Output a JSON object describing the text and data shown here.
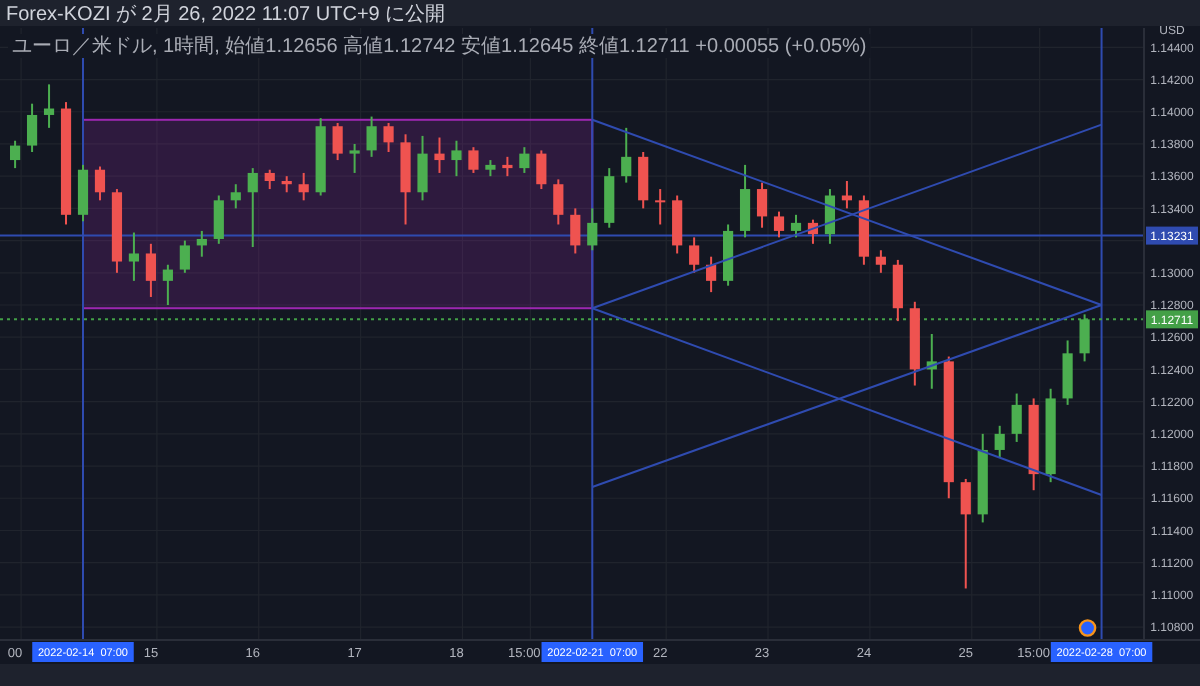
{
  "chart_data": {
    "type": "candlestick",
    "title": "Forex-KOZI が 2月 26, 2022 11:07 UTC+9 に公開",
    "subtitle": "ユーロ／米ドル, 1時間, 始値1.12656 高値1.12742 安値1.12645 終値1.12711 +0.00055 (+0.05%)",
    "ylabel": "USD",
    "categories": [
      "00",
      null,
      null,
      null,
      "2022-02-14  07:00",
      null,
      null,
      null,
      "15",
      null,
      null,
      null,
      null,
      null,
      "16",
      null,
      null,
      null,
      null,
      null,
      "17",
      null,
      null,
      null,
      null,
      null,
      "18",
      null,
      null,
      null,
      "15:00",
      null,
      null,
      null,
      "2022-02-21  07:00",
      null,
      null,
      null,
      "22",
      null,
      null,
      null,
      null,
      null,
      "23",
      null,
      null,
      null,
      null,
      null,
      "24",
      null,
      null,
      null,
      null,
      null,
      "25",
      null,
      null,
      null,
      "15:00",
      null,
      null,
      null,
      "2022-02-28  07:00"
    ],
    "ylim": [
      1.1072,
      1.1452
    ],
    "yticks": [
      {
        "value": 1.108,
        "label": "1.10800"
      },
      {
        "value": 1.11,
        "label": "1.11000"
      },
      {
        "value": 1.112,
        "label": "1.11200"
      },
      {
        "value": 1.114,
        "label": "1.11400"
      },
      {
        "value": 1.116,
        "label": "1.11600"
      },
      {
        "value": 1.118,
        "label": "1.11800"
      },
      {
        "value": 1.12,
        "label": "1.12000"
      },
      {
        "value": 1.122,
        "label": "1.12200"
      },
      {
        "value": 1.124,
        "label": "1.12400"
      },
      {
        "value": 1.126,
        "label": "1.12600"
      },
      {
        "value": 1.128,
        "label": "1.12800"
      },
      {
        "value": 1.13,
        "label": "1.13000"
      },
      {
        "value": 1.132,
        "label": null
      },
      {
        "value": 1.134,
        "label": "1.13400"
      },
      {
        "value": 1.136,
        "label": "1.13600"
      },
      {
        "value": 1.138,
        "label": "1.13800"
      },
      {
        "value": 1.14,
        "label": "1.14000"
      },
      {
        "value": 1.142,
        "label": "1.14200"
      },
      {
        "value": 1.144,
        "label": "1.14400"
      }
    ],
    "grid": true,
    "ref_lines": [
      {
        "axis": "x",
        "value": "2022-02-14  07:00",
        "color": "#2f4bb0"
      },
      {
        "axis": "x",
        "value": "2022-02-21  07:00",
        "color": "#2f4bb0"
      },
      {
        "axis": "x",
        "value": "2022-02-28  07:00",
        "color": "#2f4bb0"
      },
      {
        "axis": "y",
        "value": 1.13231,
        "label": "1.13231",
        "color": "#2f4bb0"
      },
      {
        "axis": "y",
        "value": 1.12711,
        "label": "1.12711",
        "color": "#43a047",
        "line_style": "dotted"
      }
    ],
    "bands": [
      {
        "axis": "y",
        "from": 1.1278,
        "to": 1.1395,
        "color": "#9c27b0"
      }
    ],
    "series": [
      {
        "ohlc": [
          [
            1.137,
            1.1382,
            1.1365,
            1.1379
          ],
          [
            1.1379,
            1.1405,
            1.1375,
            1.1398
          ],
          [
            1.1398,
            1.1417,
            1.139,
            1.1402
          ],
          [
            1.1402,
            1.1406,
            1.133,
            1.1336
          ],
          [
            1.1336,
            1.1367,
            1.1332,
            1.1364
          ],
          [
            1.1364,
            1.1366,
            1.1345,
            1.135
          ],
          [
            1.135,
            1.1352,
            1.13,
            1.1307
          ],
          [
            1.1307,
            1.1325,
            1.1295,
            1.1312
          ],
          [
            1.1312,
            1.1318,
            1.1285,
            1.1295
          ],
          [
            1.1295,
            1.1305,
            1.128,
            1.1302
          ],
          [
            1.1302,
            1.132,
            1.13,
            1.1317
          ],
          [
            1.1317,
            1.1326,
            1.131,
            1.1321
          ],
          [
            1.1321,
            1.1348,
            1.1318,
            1.1345
          ],
          [
            1.1345,
            1.1355,
            1.134,
            1.135
          ],
          [
            1.135,
            1.1365,
            1.1316,
            1.1362
          ],
          [
            1.1362,
            1.1364,
            1.1352,
            1.1357
          ],
          [
            1.1357,
            1.136,
            1.135,
            1.1355
          ],
          [
            1.1355,
            1.1362,
            1.1345,
            1.135
          ],
          [
            1.135,
            1.1396,
            1.1348,
            1.1391
          ],
          [
            1.1391,
            1.1393,
            1.137,
            1.1374
          ],
          [
            1.1374,
            1.138,
            1.1362,
            1.1376
          ],
          [
            1.1376,
            1.1397,
            1.1372,
            1.1391
          ],
          [
            1.1391,
            1.1393,
            1.1375,
            1.1381
          ],
          [
            1.1381,
            1.1386,
            1.133,
            1.135
          ],
          [
            1.135,
            1.1385,
            1.1345,
            1.1374
          ],
          [
            1.1374,
            1.1384,
            1.1362,
            1.137
          ],
          [
            1.137,
            1.1382,
            1.136,
            1.1376
          ],
          [
            1.1376,
            1.1378,
            1.1362,
            1.1364
          ],
          [
            1.1364,
            1.137,
            1.136,
            1.1367
          ],
          [
            1.1367,
            1.1372,
            1.136,
            1.1365
          ],
          [
            1.1365,
            1.1378,
            1.1362,
            1.1374
          ],
          [
            1.1374,
            1.1376,
            1.1352,
            1.1355
          ],
          [
            1.1355,
            1.1358,
            1.133,
            1.1336
          ],
          [
            1.1336,
            1.134,
            1.1312,
            1.1317
          ],
          [
            1.1317,
            1.134,
            1.1314,
            1.1331
          ],
          [
            1.1331,
            1.1365,
            1.1328,
            1.136
          ],
          [
            1.136,
            1.139,
            1.1356,
            1.1372
          ],
          [
            1.1372,
            1.1375,
            1.134,
            1.1345
          ],
          [
            1.1345,
            1.1352,
            1.133,
            1.1345
          ],
          [
            1.1345,
            1.1348,
            1.1312,
            1.1317
          ],
          [
            1.1317,
            1.1322,
            1.13,
            1.1305
          ],
          [
            1.1305,
            1.131,
            1.1288,
            1.1295
          ],
          [
            1.1295,
            1.133,
            1.1292,
            1.1326
          ],
          [
            1.1326,
            1.1367,
            1.1322,
            1.1352
          ],
          [
            1.1352,
            1.1356,
            1.1328,
            1.1335
          ],
          [
            1.1335,
            1.1338,
            1.1322,
            1.1326
          ],
          [
            1.1326,
            1.1336,
            1.1322,
            1.1331
          ],
          [
            1.1331,
            1.1333,
            1.1318,
            1.1324
          ],
          [
            1.1324,
            1.1352,
            1.1318,
            1.1348
          ],
          [
            1.1348,
            1.1357,
            1.134,
            1.1345
          ],
          [
            1.1345,
            1.1348,
            1.1305,
            1.131
          ],
          [
            1.131,
            1.1314,
            1.13,
            1.1305
          ],
          [
            1.1305,
            1.1308,
            1.127,
            1.1278
          ],
          [
            1.1278,
            1.1282,
            1.123,
            1.124
          ],
          [
            1.124,
            1.1262,
            1.1228,
            1.1245
          ],
          [
            1.1245,
            1.1248,
            1.116,
            1.117
          ],
          [
            1.117,
            1.1172,
            1.1104,
            1.115
          ],
          [
            1.115,
            1.12,
            1.1145,
            1.119
          ],
          [
            1.119,
            1.1205,
            1.1185,
            1.12
          ],
          [
            1.12,
            1.1225,
            1.1195,
            1.1218
          ],
          [
            1.1218,
            1.1222,
            1.1165,
            1.1175
          ],
          [
            1.1175,
            1.1228,
            1.117,
            1.1222
          ],
          [
            1.1222,
            1.1258,
            1.1218,
            1.125
          ],
          [
            1.125,
            1.12742,
            1.1245,
            1.12711
          ],
          null
        ],
        "colors": [
          "#4caf50",
          "#4caf50",
          "#4caf50",
          "#ef5350",
          "#4caf50",
          "#ef5350",
          "#ef5350",
          "#4caf50",
          "#ef5350",
          "#4caf50",
          "#4caf50",
          "#4caf50",
          "#4caf50",
          "#4caf50",
          "#4caf50",
          "#ef5350",
          "#ef5350",
          "#ef5350",
          "#4caf50",
          "#ef5350",
          "#4caf50",
          "#4caf50",
          "#ef5350",
          "#ef5350",
          "#4caf50",
          "#ef5350",
          "#4caf50",
          "#ef5350",
          "#4caf50",
          "#ef5350",
          "#4caf50",
          "#ef5350",
          "#ef5350",
          "#ef5350",
          "#4caf50",
          "#4caf50",
          "#4caf50",
          "#ef5350",
          "#ef5350",
          "#ef5350",
          "#ef5350",
          "#ef5350",
          "#4caf50",
          "#4caf50",
          "#ef5350",
          "#ef5350",
          "#4caf50",
          "#ef5350",
          "#4caf50",
          "#ef5350",
          "#ef5350",
          "#ef5350",
          "#ef5350",
          "#ef5350",
          "#4caf50",
          "#ef5350",
          "#ef5350",
          "#4caf50",
          "#4caf50",
          "#4caf50",
          "#ef5350",
          "#4caf50",
          "#4caf50",
          "#4caf50",
          null
        ]
      },
      {
        "type": "line",
        "color": "#2f4bb0",
        "x": [
          "2022-02-21  07:00",
          "2022-02-28  07:00"
        ],
        "values": [
          1.1395,
          1.128
        ]
      },
      {
        "type": "line",
        "color": "#2f4bb0",
        "x": [
          "2022-02-21  07:00",
          "2022-02-28  07:00"
        ],
        "values": [
          1.1278,
          1.1162
        ]
      },
      {
        "type": "line",
        "color": "#2f4bb0",
        "x": [
          "2022-02-21  07:00",
          "2022-02-28  07:00"
        ],
        "values": [
          1.1167,
          1.128
        ]
      },
      {
        "type": "line",
        "color": "#2f4bb0",
        "x": [
          "2022-02-21  07:00",
          "2022-02-28  07:00"
        ],
        "values": [
          1.1278,
          1.1392
        ]
      }
    ]
  }
}
